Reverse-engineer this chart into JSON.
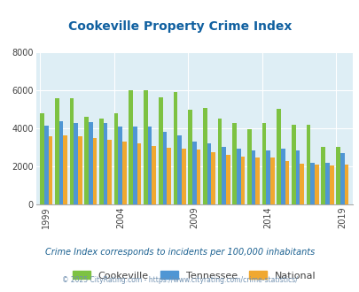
{
  "title": "Cookeville Property Crime Index",
  "years": [
    1999,
    2000,
    2001,
    2002,
    2003,
    2004,
    2005,
    2006,
    2007,
    2008,
    2009,
    2010,
    2011,
    2012,
    2013,
    2014,
    2015,
    2016,
    2017,
    2018,
    2019
  ],
  "cookeville": [
    4800,
    5600,
    5600,
    4600,
    4500,
    4800,
    6000,
    6000,
    5650,
    5900,
    5000,
    5100,
    4500,
    4300,
    3950,
    4300,
    5050,
    4200,
    4200,
    3050,
    3050
  ],
  "tennessee": [
    4150,
    4400,
    4300,
    4350,
    4300,
    4100,
    4100,
    4100,
    3800,
    3650,
    3300,
    3200,
    3050,
    2950,
    2850,
    2850,
    2950,
    2850,
    2200,
    2200,
    2700
  ],
  "national": [
    3600,
    3650,
    3600,
    3500,
    3400,
    3300,
    3200,
    3100,
    3000,
    2950,
    2900,
    2750,
    2600,
    2500,
    2450,
    2450,
    2300,
    2150,
    2100,
    2050,
    2100
  ],
  "legend_labels": [
    "Cookeville",
    "Tennessee",
    "National"
  ],
  "colors": [
    "#7dc242",
    "#4f96d4",
    "#f0a830"
  ],
  "bg_color": "#deeef5",
  "ylim": [
    0,
    8000
  ],
  "yticks": [
    0,
    2000,
    4000,
    6000,
    8000
  ],
  "xlabel_ticks": [
    1999,
    2004,
    2009,
    2014,
    2019
  ],
  "subtitle": "Crime Index corresponds to incidents per 100,000 inhabitants",
  "footer": "© 2025 CityRating.com - https://www.cityrating.com/crime-statistics/",
  "title_color": "#1060a0",
  "subtitle_color": "#1a6090",
  "footer_color": "#7090b0"
}
